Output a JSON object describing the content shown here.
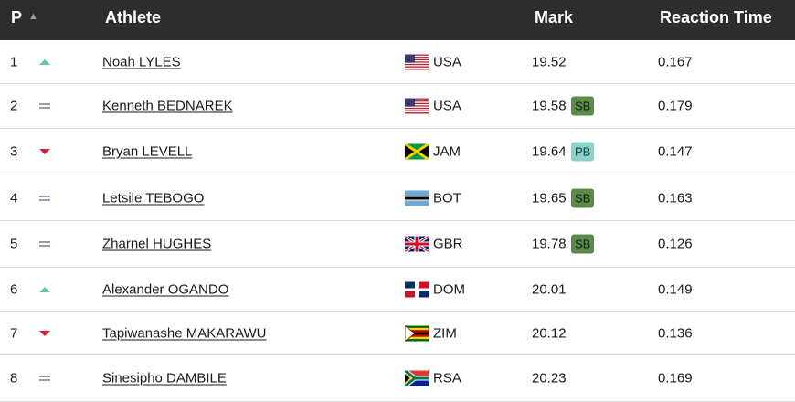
{
  "header": {
    "pos_label": "P",
    "sort_icon": "▲",
    "athlete_label": "Athlete",
    "mark_label": "Mark",
    "reaction_label": "Reaction Time"
  },
  "colors": {
    "header_bg": "#2d2d2d",
    "trend_up": "#5ec7a1",
    "trend_down": "#e0202e",
    "trend_same": "#9b9bb3",
    "badge_sb": "#5c8a4b",
    "badge_pb": "#8ad3c8"
  },
  "rows": [
    {
      "pos": "1",
      "trend": "up",
      "name": "Noah LYLES",
      "country": "USA",
      "flag": "usa-flag-icon",
      "mark": "19.52",
      "badge": "",
      "rt": "0.167"
    },
    {
      "pos": "2",
      "trend": "same",
      "name": "Kenneth BEDNAREK",
      "country": "USA",
      "flag": "usa-flag-icon",
      "mark": "19.58",
      "badge": "SB",
      "rt": "0.179"
    },
    {
      "pos": "3",
      "trend": "down",
      "name": "Bryan LEVELL",
      "country": "JAM",
      "flag": "jamaica-flag-icon",
      "mark": "19.64",
      "badge": "PB",
      "rt": "0.147"
    },
    {
      "pos": "4",
      "trend": "same",
      "name": "Letsile TEBOGO",
      "country": "BOT",
      "flag": "botswana-flag-icon",
      "mark": "19.65",
      "badge": "SB",
      "rt": "0.163"
    },
    {
      "pos": "5",
      "trend": "same",
      "name": "Zharnel HUGHES",
      "country": "GBR",
      "flag": "uk-flag-icon",
      "mark": "19.78",
      "badge": "SB",
      "rt": "0.126"
    },
    {
      "pos": "6",
      "trend": "up",
      "name": "Alexander OGANDO",
      "country": "DOM",
      "flag": "dominican-flag-icon",
      "mark": "20.01",
      "badge": "",
      "rt": "0.149"
    },
    {
      "pos": "7",
      "trend": "down",
      "name": "Tapiwanashe MAKARAWU",
      "country": "ZIM",
      "flag": "zimbabwe-flag-icon",
      "mark": "20.12",
      "badge": "",
      "rt": "0.136"
    },
    {
      "pos": "8",
      "trend": "same",
      "name": "Sinesipho DAMBILE",
      "country": "RSA",
      "flag": "south-africa-flag-icon",
      "mark": "20.23",
      "badge": "",
      "rt": "0.169"
    }
  ]
}
